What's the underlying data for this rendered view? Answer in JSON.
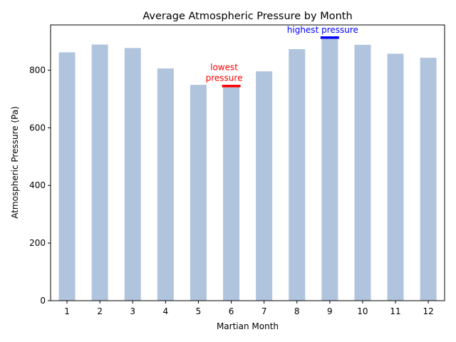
{
  "chart_data": {
    "type": "bar",
    "title": "Average Atmospheric Pressure by Month",
    "xlabel": "Martian Month",
    "ylabel": "Atmospheric Pressure (Pa)",
    "categories": [
      "1",
      "2",
      "3",
      "4",
      "5",
      "6",
      "7",
      "8",
      "9",
      "10",
      "11",
      "12"
    ],
    "values": [
      862,
      889,
      877,
      806,
      749,
      745,
      796,
      873,
      913,
      888,
      857,
      843
    ],
    "ylim": [
      0,
      957
    ],
    "yticks": [
      0,
      200,
      400,
      600,
      800
    ],
    "bar_color": "#b0c4de",
    "grid": false,
    "annotations": [
      {
        "category": "6",
        "value": 745,
        "label_lines": [
          "lowest",
          "pressure"
        ],
        "color": "#ff0000"
      },
      {
        "category": "9",
        "value": 913,
        "label_lines": [
          "highest pressure"
        ],
        "color": "#0000ff"
      }
    ]
  }
}
